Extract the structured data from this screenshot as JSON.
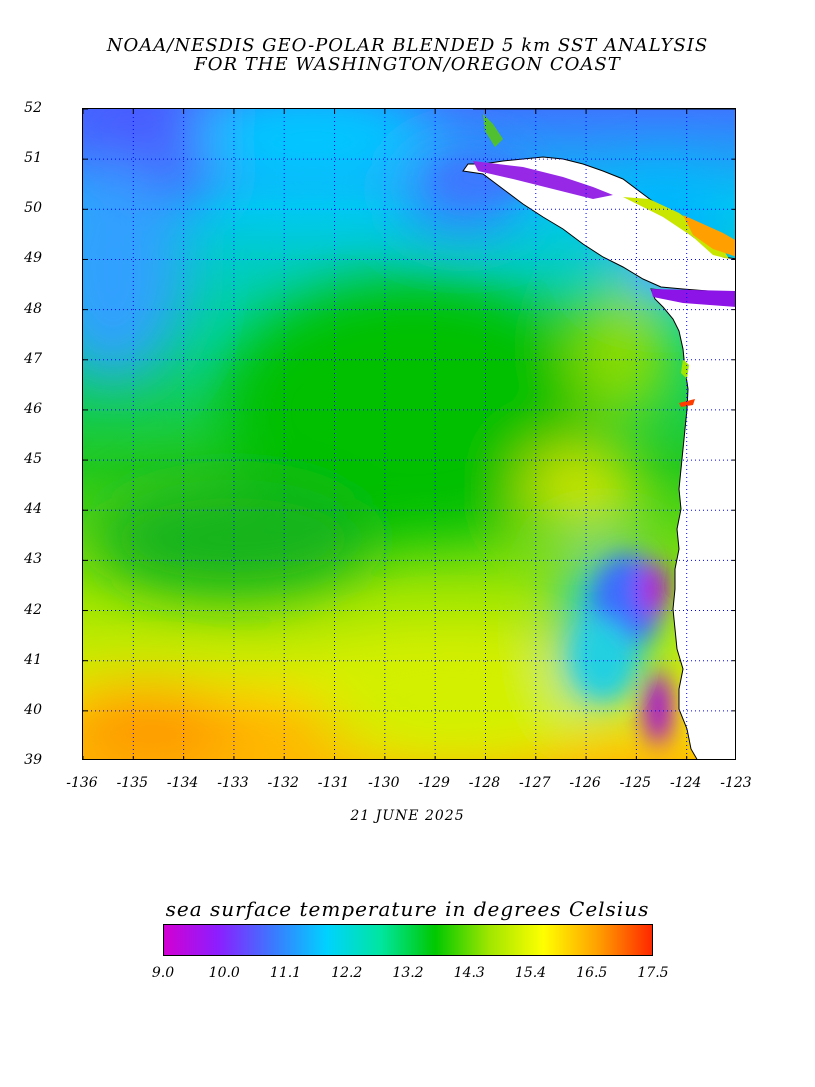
{
  "title_line1": "NOAA/NESDIS GEO-POLAR BLENDED 5 km SST ANALYSIS",
  "title_line2": "FOR THE WASHINGTON/OREGON COAST",
  "date": "21 JUNE 2025",
  "colorbar": {
    "title": "sea surface temperature in degrees Celsius",
    "labels": [
      "9.0",
      "10.0",
      "11.1",
      "12.2",
      "13.2",
      "14.3",
      "15.4",
      "16.5",
      "17.5"
    ],
    "colors": [
      "#d200d2",
      "#8c1eff",
      "#3c78ff",
      "#00d2ff",
      "#00e6a0",
      "#00c800",
      "#a0e600",
      "#ffff00",
      "#ffa000",
      "#ff2800"
    ]
  },
  "map": {
    "lat_labels": [
      "52",
      "51",
      "50",
      "49",
      "48",
      "47",
      "46",
      "45",
      "44",
      "43",
      "42",
      "41",
      "40",
      "39"
    ],
    "lon_labels": [
      "-136",
      "-135",
      "-134",
      "-133",
      "-132",
      "-131",
      "-130",
      "-129",
      "-128",
      "-127",
      "-126",
      "-125",
      "-124",
      "-123"
    ],
    "lat_range": [
      39,
      52
    ],
    "lon_range": [
      -136,
      -123
    ],
    "land_color": "#ffffff",
    "grid_color": "#0000ff"
  }
}
